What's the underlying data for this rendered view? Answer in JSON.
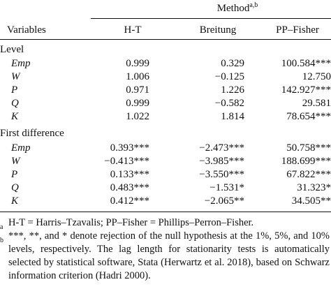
{
  "header": {
    "method_label": "Method",
    "method_sup": "a,b",
    "variables_label": "Variables",
    "col_ht": "H-T",
    "col_breitung": "Breitung",
    "col_ppfisher": "PP–Fisher"
  },
  "sections": [
    {
      "title": "Level",
      "rows": [
        {
          "var": "Emp",
          "ht": "0.999",
          "breitung": "0.329",
          "pp": "100.584***"
        },
        {
          "var": "W",
          "ht": "1.006",
          "breitung": "−0.125",
          "pp": "12.750"
        },
        {
          "var": "P",
          "ht": "0.971",
          "breitung": "1.226",
          "pp": "142.927***"
        },
        {
          "var": "Q",
          "ht": "0.999",
          "breitung": "−0.582",
          "pp": "29.581"
        },
        {
          "var": "K",
          "ht": "1.022",
          "breitung": "1.814",
          "pp": "78.654***"
        }
      ]
    },
    {
      "title": "First difference",
      "rows": [
        {
          "var": "Emp",
          "ht": "0.393***",
          "breitung": "−2.473***",
          "pp": "50.758***"
        },
        {
          "var": "W",
          "ht": "−0.413***",
          "breitung": "−3.985***",
          "pp": "188.699***"
        },
        {
          "var": "P",
          "ht": "0.133***",
          "breitung": "−3.550***",
          "pp": "67.822***"
        },
        {
          "var": "Q",
          "ht": "0.483***",
          "breitung": "−1.531*",
          "pp": "31.323*"
        },
        {
          "var": "K",
          "ht": "0.412***",
          "breitung": "−2.065**",
          "pp": "34.505**"
        }
      ]
    }
  ],
  "footnotes": [
    {
      "mark": "a",
      "text": "H-T = Harris–Tzavalis; PP–Fisher = Phillips–Perron–Fisher."
    },
    {
      "mark": "b",
      "text": "***, **, and * denote rejection of the null hypothesis at the 1%, 5%, and 10% levels, respectively. The lag length for stationarity tests is automatically selected by statistical software, Stata (Herwartz et al. 2018), based on Schwarz information criterion (Hadri 2000)."
    }
  ]
}
